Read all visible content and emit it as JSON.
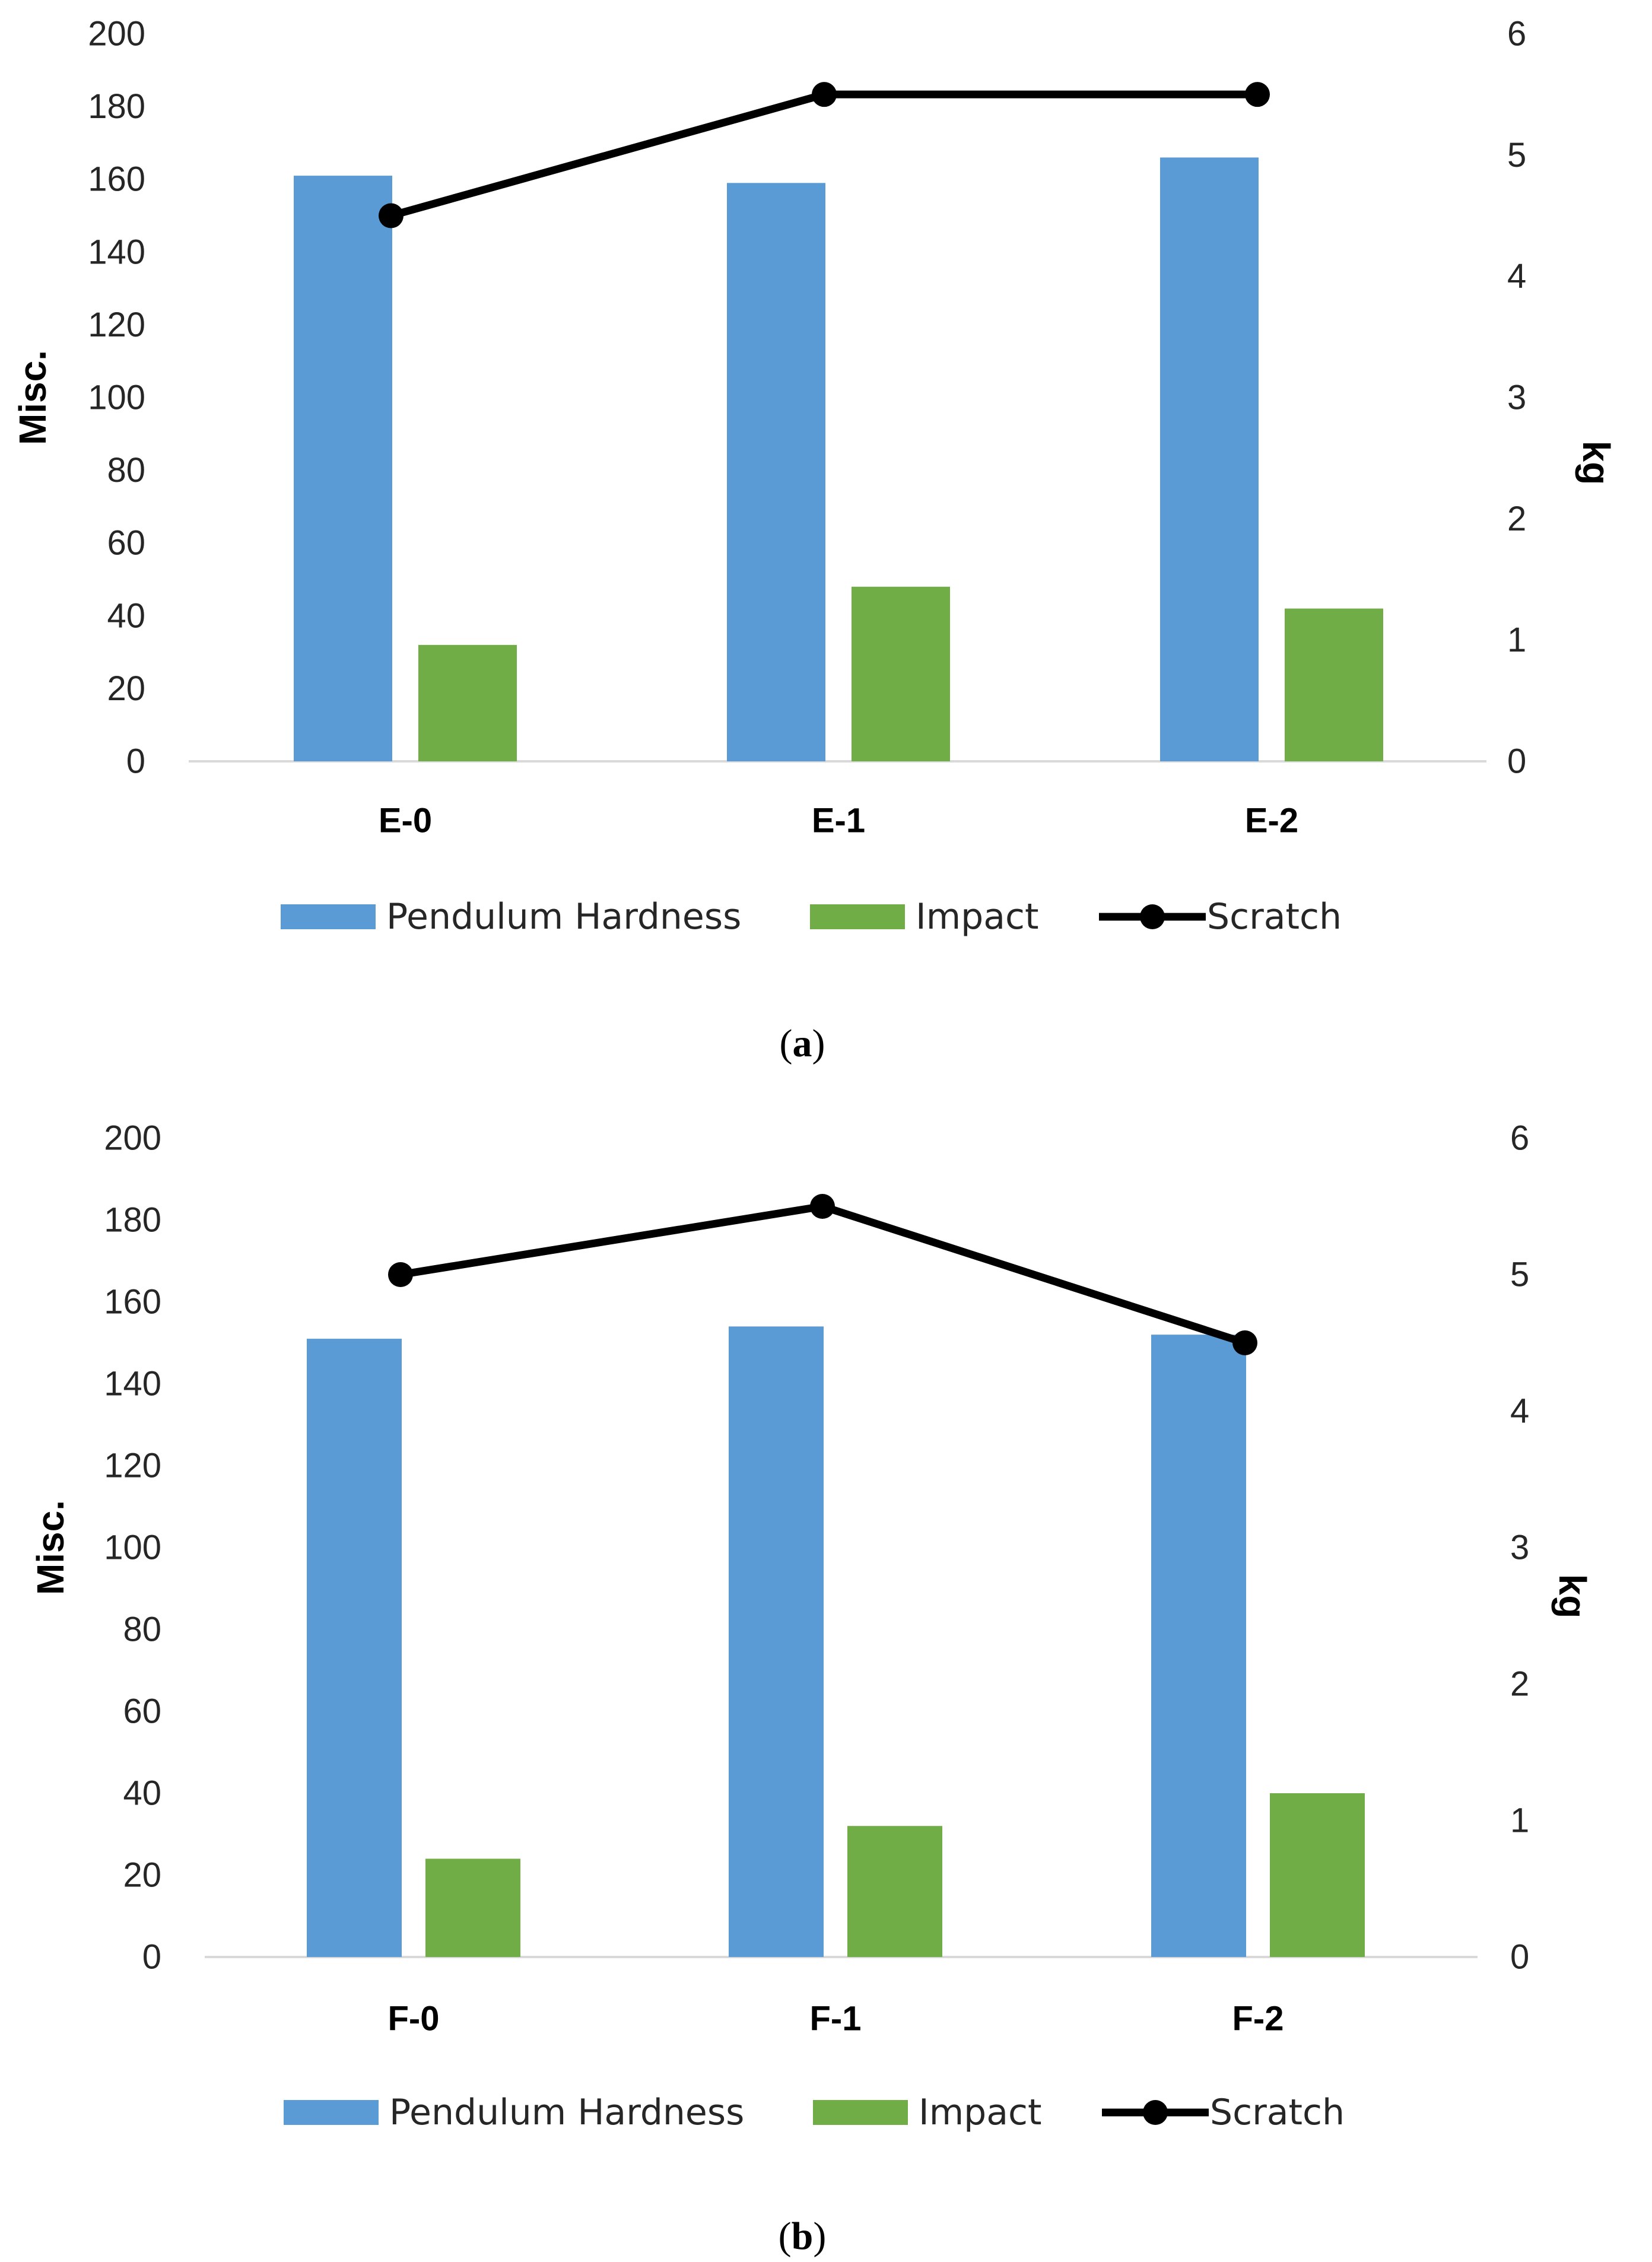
{
  "colors": {
    "pendulum": "#5B9BD5",
    "impact": "#70AD47",
    "scratch": "#000000",
    "axis": "#D9D9D9"
  },
  "chart_data": [
    {
      "type": "bar",
      "panel_label": "a",
      "categories": [
        "E-0",
        "E-1",
        "E-2"
      ],
      "series": [
        {
          "name": "Pendulum Hardness",
          "kind": "bar",
          "axis": "left",
          "values": [
            161,
            159,
            166
          ]
        },
        {
          "name": "Impact",
          "kind": "bar",
          "axis": "left",
          "values": [
            32,
            48,
            42
          ]
        },
        {
          "name": "Scratch",
          "kind": "line",
          "axis": "right",
          "values": [
            4.5,
            5.5,
            5.5
          ]
        }
      ],
      "ylabel": "Misc.",
      "y2label": "kg",
      "ylim": [
        0,
        200
      ],
      "y2lim": [
        0,
        6
      ],
      "yticks": [
        "0",
        "20",
        "40",
        "60",
        "80",
        "100",
        "120",
        "140",
        "160",
        "180",
        "200"
      ],
      "y2ticks": [
        "0",
        "1",
        "2",
        "3",
        "4",
        "5",
        "6"
      ],
      "legend_position": "bottom"
    },
    {
      "type": "bar",
      "panel_label": "b",
      "categories": [
        "F-0",
        "F-1",
        "F-2"
      ],
      "series": [
        {
          "name": "Pendulum Hardness",
          "kind": "bar",
          "axis": "left",
          "values": [
            151,
            154,
            152
          ]
        },
        {
          "name": "Impact",
          "kind": "bar",
          "axis": "left",
          "values": [
            24,
            32,
            40
          ]
        },
        {
          "name": "Scratch",
          "kind": "line",
          "axis": "right",
          "values": [
            5.0,
            5.5,
            4.5
          ]
        }
      ],
      "ylabel": "Misc.",
      "y2label": "kg",
      "ylim": [
        0,
        200
      ],
      "y2lim": [
        0,
        6
      ],
      "yticks": [
        "0",
        "20",
        "40",
        "60",
        "80",
        "100",
        "120",
        "140",
        "160",
        "180",
        "200"
      ],
      "y2ticks": [
        "0",
        "1",
        "2",
        "3",
        "4",
        "5",
        "6"
      ],
      "legend_position": "bottom"
    }
  ]
}
